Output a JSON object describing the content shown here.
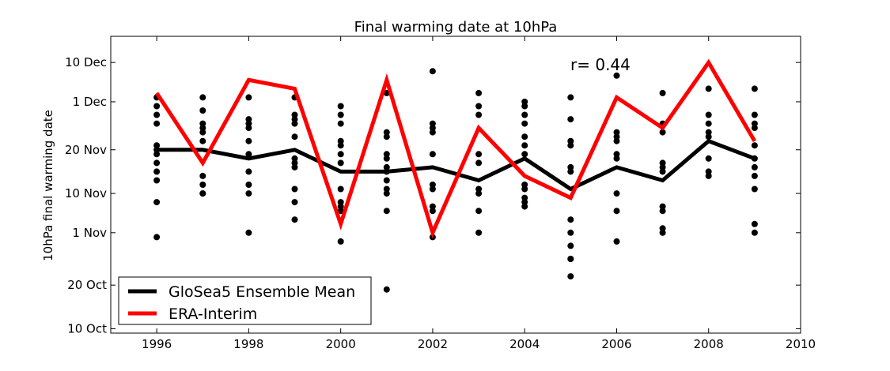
{
  "chart_data": {
    "type": "line",
    "title": "Final warming date at 10hPa",
    "xlabel": "",
    "ylabel": "10hPa final warming date",
    "annotation": "r= 0.44",
    "xlim": [
      1995,
      2010
    ],
    "ylim": [
      "2000-10-09",
      "2000-12-16"
    ],
    "x_ticks": [
      1996,
      1998,
      2000,
      2002,
      2004,
      2006,
      2008,
      2010
    ],
    "y_ticks": [
      {
        "date": "2000-10-10",
        "label": "10 Oct"
      },
      {
        "date": "2000-10-20",
        "label": "20 Oct"
      },
      {
        "date": "2000-11-01",
        "label": "1 Nov"
      },
      {
        "date": "2000-11-10",
        "label": "10 Nov"
      },
      {
        "date": "2000-11-20",
        "label": "20 Nov"
      },
      {
        "date": "2000-12-01",
        "label": "1 Dec"
      },
      {
        "date": "2000-12-10",
        "label": "10 Dec"
      }
    ],
    "grid": false,
    "legend_position": "bottom-left",
    "series": [
      {
        "name": "GloSea5 Ensemble Mean",
        "color": "#000000",
        "x": [
          1996,
          1997,
          1998,
          1999,
          2000,
          2001,
          2002,
          2003,
          2004,
          2005,
          2006,
          2007,
          2008,
          2009
        ],
        "y": [
          "2000-11-20",
          "2000-11-20",
          "2000-11-18",
          "2000-11-20",
          "2000-11-15",
          "2000-11-15",
          "2000-11-16",
          "2000-11-13",
          "2000-11-18",
          "2000-11-11",
          "2000-11-16",
          "2000-11-13",
          "2000-11-22",
          "2000-11-18"
        ]
      },
      {
        "name": "ERA-Interim",
        "color": "#ff0000",
        "x": [
          1996,
          1997,
          1998,
          1999,
          2000,
          2001,
          2002,
          2003,
          2004,
          2005,
          2006,
          2007,
          2008,
          2009
        ],
        "y": [
          "2000-12-03",
          "2000-11-17",
          "2000-12-06",
          "2000-12-04",
          "2000-11-03",
          "2000-12-06",
          "2000-11-01",
          "2000-11-25",
          "2000-11-14",
          "2000-11-09",
          "2000-12-02",
          "2000-11-25",
          "2000-12-10",
          "2000-11-22"
        ]
      }
    ],
    "ensemble_members": {
      "color": "#000000",
      "points": [
        {
          "x": 1996,
          "y": [
            "2000-12-02",
            "2000-11-30",
            "2000-11-28",
            "2000-11-26",
            "2000-11-21",
            "2000-11-20",
            "2000-11-19",
            "2000-11-17",
            "2000-11-15",
            "2000-11-13",
            "2000-11-08",
            "2000-10-31"
          ]
        },
        {
          "x": 1997,
          "y": [
            "2000-12-02",
            "2000-11-29",
            "2000-11-26",
            "2000-11-25",
            "2000-11-24",
            "2000-11-22",
            "2000-11-14",
            "2000-11-12",
            "2000-11-10",
            "2000-11-10"
          ]
        },
        {
          "x": 1998,
          "y": [
            "2000-12-02",
            "2000-11-27",
            "2000-11-26",
            "2000-11-25",
            "2000-11-22",
            "2000-11-19",
            "2000-11-15",
            "2000-11-12",
            "2000-11-10",
            "2000-11-01"
          ]
        },
        {
          "x": 1999,
          "y": [
            "2000-12-02",
            "2000-11-28",
            "2000-11-27",
            "2000-11-26",
            "2000-11-23",
            "2000-11-18",
            "2000-11-17",
            "2000-11-16",
            "2000-11-11",
            "2000-11-08",
            "2000-11-04"
          ]
        },
        {
          "x": 2000,
          "y": [
            "2000-11-30",
            "2000-11-28",
            "2000-11-26",
            "2000-11-22",
            "2000-11-21",
            "2000-11-19",
            "2000-11-17",
            "2000-11-11",
            "2000-11-08",
            "2000-11-07",
            "2000-11-06",
            "2000-10-30"
          ]
        },
        {
          "x": 2001,
          "y": [
            "2000-12-03",
            "2000-11-24",
            "2000-11-23",
            "2000-11-19",
            "2000-11-18",
            "2000-11-16",
            "2000-11-15",
            "2000-11-13",
            "2000-11-11",
            "2000-11-10",
            "2000-11-06",
            "2000-10-19"
          ]
        },
        {
          "x": 2002,
          "y": [
            "2000-12-08",
            "2000-11-26",
            "2000-11-25",
            "2000-11-24",
            "2000-11-19",
            "2000-11-12",
            "2000-11-11",
            "2000-11-07",
            "2000-11-06",
            "2000-10-31"
          ]
        },
        {
          "x": 2003,
          "y": [
            "2000-12-03",
            "2000-11-30",
            "2000-11-28",
            "2000-11-19",
            "2000-11-17",
            "2000-11-11",
            "2000-11-10",
            "2000-11-06",
            "2000-11-01"
          ]
        },
        {
          "x": 2004,
          "y": [
            "2000-12-01",
            "2000-11-30",
            "2000-11-28",
            "2000-11-26",
            "2000-11-23",
            "2000-11-21",
            "2000-11-19",
            "2000-11-12",
            "2000-11-11",
            "2000-11-09",
            "2000-11-08",
            "2000-11-07"
          ]
        },
        {
          "x": 2005,
          "y": [
            "2000-12-02",
            "2000-11-27",
            "2000-11-22",
            "2000-11-21",
            "2000-11-16",
            "2000-11-15",
            "2000-11-04",
            "2000-11-01",
            "2000-10-29",
            "2000-10-26",
            "2000-10-26",
            "2000-10-22"
          ]
        },
        {
          "x": 2006,
          "y": [
            "2000-12-07",
            "2000-11-24",
            "2000-11-23",
            "2000-11-22",
            "2000-11-19",
            "2000-11-18",
            "2000-11-10",
            "2000-11-06",
            "2000-10-30"
          ]
        },
        {
          "x": 2007,
          "y": [
            "2000-12-03",
            "2000-11-26",
            "2000-11-24",
            "2000-11-17",
            "2000-11-16",
            "2000-11-15",
            "2000-11-07",
            "2000-11-06",
            "2000-11-02",
            "2000-11-01"
          ]
        },
        {
          "x": 2008,
          "y": [
            "2000-12-04",
            "2000-11-28",
            "2000-11-26",
            "2000-11-24",
            "2000-11-23",
            "2000-11-18",
            "2000-11-15",
            "2000-11-14"
          ]
        },
        {
          "x": 2009,
          "y": [
            "2000-12-04",
            "2000-11-28",
            "2000-11-26",
            "2000-11-25",
            "2000-11-21",
            "2000-11-18",
            "2000-11-16",
            "2000-11-14",
            "2000-11-11",
            "2000-11-03",
            "2000-11-01"
          ]
        }
      ]
    }
  }
}
